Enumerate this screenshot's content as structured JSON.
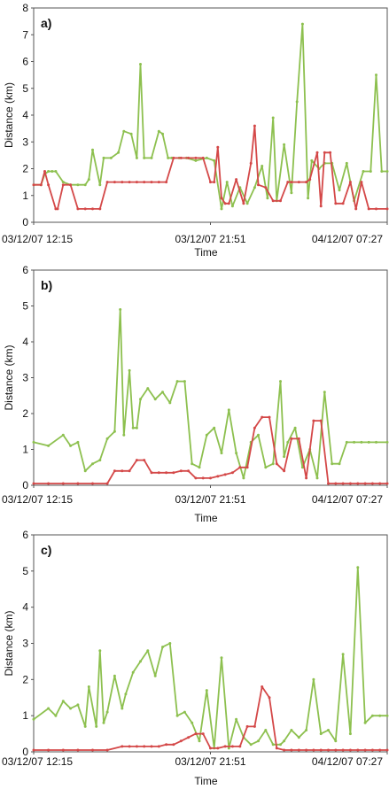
{
  "colors": {
    "green": "#8dc04f",
    "red": "#d44848",
    "axis": "#555555"
  },
  "chart_data": [
    {
      "type": "line",
      "panel_label": "a)",
      "xlabel": "Time",
      "ylabel": "Distance (km)",
      "ylim": [
        0,
        8
      ],
      "yticks": [
        0,
        1,
        2,
        3,
        4,
        5,
        6,
        7,
        8
      ],
      "xlim": [
        0,
        19.2
      ],
      "x_tick_values": [
        0,
        9.6,
        19.2
      ],
      "x_tick_labels": [
        "03/12/07 12:15",
        "03/12/07 21:51",
        "04/12/07 07:27"
      ],
      "grid": false,
      "series": [
        {
          "color": "green",
          "x": [
            0.0,
            0.4,
            0.6,
            0.8,
            1.0,
            1.2,
            1.6,
            2.0,
            2.4,
            2.8,
            3.0,
            3.2,
            3.6,
            3.8,
            4.2,
            4.6,
            4.9,
            5.3,
            5.6,
            5.8,
            6.0,
            6.4,
            6.8,
            7.0,
            7.3,
            7.5,
            7.9,
            8.3,
            8.8,
            9.4,
            9.8,
            10.2,
            10.5,
            10.8,
            11.2,
            11.6,
            12.0,
            12.4,
            12.7,
            13.0,
            13.2,
            13.6,
            14.0,
            14.3,
            14.6,
            14.9,
            15.1,
            15.5,
            15.8,
            16.2,
            16.6,
            17.0,
            17.4,
            17.9,
            18.3,
            18.6,
            18.9,
            19.2
          ],
          "y": [
            1.4,
            1.4,
            1.8,
            1.9,
            1.9,
            1.9,
            1.5,
            1.4,
            1.4,
            1.4,
            1.6,
            2.7,
            1.4,
            2.4,
            2.4,
            2.6,
            3.4,
            3.3,
            2.4,
            5.9,
            2.4,
            2.4,
            3.4,
            3.3,
            2.4,
            2.4,
            2.4,
            2.4,
            2.3,
            2.4,
            2.3,
            0.5,
            1.5,
            0.6,
            1.3,
            0.7,
            1.3,
            2.1,
            0.9,
            3.9,
            0.8,
            2.9,
            1.1,
            4.5,
            7.4,
            0.9,
            2.3,
            2.0,
            2.2,
            2.2,
            1.2,
            2.2,
            0.8,
            1.9,
            1.9,
            5.5,
            1.9,
            1.9
          ]
        },
        {
          "color": "red",
          "x": [
            0.0,
            0.4,
            0.6,
            0.8,
            1.2,
            1.3,
            1.6,
            2.0,
            2.4,
            2.8,
            3.2,
            3.6,
            4.0,
            4.4,
            4.8,
            5.2,
            5.6,
            6.0,
            6.4,
            6.8,
            7.2,
            7.6,
            8.0,
            8.4,
            8.8,
            9.2,
            9.6,
            9.8,
            10.0,
            10.2,
            10.4,
            10.6,
            11.0,
            11.4,
            11.8,
            12.0,
            12.2,
            12.6,
            13.0,
            13.4,
            13.8,
            14.0,
            14.4,
            14.8,
            15.0,
            15.4,
            15.6,
            15.8,
            16.1,
            16.4,
            16.8,
            17.2,
            17.5,
            17.8,
            18.2,
            18.6,
            19.2
          ],
          "y": [
            1.4,
            1.4,
            1.9,
            1.4,
            0.5,
            0.5,
            1.4,
            1.4,
            0.5,
            0.5,
            0.5,
            0.5,
            1.5,
            1.5,
            1.5,
            1.5,
            1.5,
            1.5,
            1.5,
            1.5,
            1.5,
            2.4,
            2.4,
            2.4,
            2.4,
            2.4,
            1.5,
            1.5,
            2.8,
            0.9,
            0.7,
            0.7,
            1.6,
            0.7,
            2.2,
            3.6,
            1.4,
            1.3,
            0.8,
            0.8,
            1.5,
            1.5,
            1.5,
            1.5,
            1.6,
            2.6,
            0.6,
            2.6,
            2.6,
            0.7,
            0.7,
            1.5,
            0.5,
            1.5,
            0.5,
            0.5,
            0.5
          ]
        }
      ]
    },
    {
      "type": "line",
      "panel_label": "b)",
      "xlabel": "Time",
      "ylabel": "Distance (km)",
      "ylim": [
        0,
        6
      ],
      "yticks": [
        0,
        1,
        2,
        3,
        4,
        5,
        6
      ],
      "xlim": [
        0,
        19.2
      ],
      "x_tick_values": [
        0,
        9.6,
        19.2
      ],
      "x_tick_labels": [
        "03/12/07 12:15",
        "03/12/07 21:51",
        "04/12/07 07:27"
      ],
      "grid": false,
      "series": [
        {
          "color": "green",
          "x": [
            0.0,
            0.8,
            1.6,
            2.0,
            2.4,
            2.8,
            3.2,
            3.6,
            4.0,
            4.4,
            4.7,
            4.9,
            5.2,
            5.4,
            5.6,
            5.8,
            6.2,
            6.6,
            7.0,
            7.4,
            7.8,
            8.2,
            8.6,
            9.0,
            9.4,
            9.8,
            10.2,
            10.6,
            11.0,
            11.4,
            11.8,
            12.2,
            12.6,
            13.0,
            13.4,
            13.6,
            13.8,
            14.2,
            14.6,
            15.0,
            15.4,
            15.8,
            16.2,
            16.6,
            17.0,
            17.4,
            17.8,
            18.2,
            18.6,
            19.2
          ],
          "y": [
            1.2,
            1.1,
            1.4,
            1.1,
            1.2,
            0.4,
            0.6,
            0.7,
            1.3,
            1.5,
            4.9,
            1.4,
            3.2,
            1.6,
            1.6,
            2.4,
            2.7,
            2.4,
            2.6,
            2.3,
            2.9,
            2.9,
            0.6,
            0.5,
            1.4,
            1.6,
            0.9,
            2.1,
            0.9,
            0.2,
            1.2,
            1.4,
            0.5,
            0.6,
            2.9,
            0.8,
            1.2,
            1.6,
            0.5,
            1.0,
            0.2,
            2.6,
            0.6,
            0.6,
            1.2,
            1.2,
            1.2,
            1.2,
            1.2,
            1.2
          ]
        },
        {
          "color": "red",
          "x": [
            0.0,
            0.8,
            1.6,
            2.4,
            3.2,
            4.0,
            4.4,
            4.8,
            5.2,
            5.6,
            6.0,
            6.4,
            6.8,
            7.2,
            7.6,
            8.0,
            8.4,
            8.8,
            9.2,
            9.6,
            10.0,
            10.4,
            10.8,
            11.2,
            11.6,
            12.0,
            12.4,
            12.8,
            13.2,
            13.6,
            14.0,
            14.4,
            14.8,
            15.2,
            15.6,
            16.0,
            16.4,
            16.8,
            17.2,
            17.6,
            18.0,
            18.4,
            18.8,
            19.2
          ],
          "y": [
            0.05,
            0.05,
            0.05,
            0.05,
            0.05,
            0.05,
            0.4,
            0.4,
            0.4,
            0.7,
            0.7,
            0.35,
            0.35,
            0.35,
            0.35,
            0.4,
            0.4,
            0.2,
            0.2,
            0.2,
            0.25,
            0.3,
            0.35,
            0.5,
            0.5,
            1.6,
            1.9,
            1.9,
            0.6,
            0.4,
            1.3,
            1.3,
            0.2,
            1.8,
            1.8,
            0.05,
            0.05,
            0.05,
            0.05,
            0.05,
            0.05,
            0.05,
            0.05,
            0.05
          ]
        }
      ]
    },
    {
      "type": "line",
      "panel_label": "c)",
      "xlabel": "Time",
      "ylabel": "Distance (km)",
      "ylim": [
        0,
        6
      ],
      "yticks": [
        0,
        1,
        2,
        3,
        4,
        5,
        6
      ],
      "xlim": [
        0,
        19.2
      ],
      "x_tick_values": [
        0,
        9.6,
        19.2
      ],
      "x_tick_labels": [
        "03/12/07 12:15",
        "03/12/07 21:51",
        "04/12/07 07:27"
      ],
      "grid": false,
      "series": [
        {
          "color": "green",
          "x": [
            0.0,
            0.8,
            1.2,
            1.6,
            2.0,
            2.4,
            2.8,
            3.0,
            3.4,
            3.6,
            3.8,
            4.0,
            4.4,
            4.8,
            5.0,
            5.4,
            5.8,
            6.2,
            6.6,
            7.0,
            7.4,
            7.8,
            8.2,
            8.6,
            9.0,
            9.4,
            9.8,
            10.2,
            10.6,
            11.0,
            11.4,
            11.8,
            12.2,
            12.6,
            13.0,
            13.4,
            13.6,
            14.0,
            14.4,
            14.8,
            15.2,
            15.6,
            16.0,
            16.4,
            16.8,
            17.2,
            17.6,
            18.0,
            18.4,
            18.8,
            19.2
          ],
          "y": [
            0.9,
            1.2,
            1.0,
            1.4,
            1.2,
            1.3,
            0.7,
            1.8,
            0.7,
            2.8,
            0.8,
            1.1,
            2.1,
            1.2,
            1.6,
            2.2,
            2.5,
            2.8,
            2.1,
            2.9,
            3.0,
            1.0,
            1.1,
            0.8,
            0.3,
            1.7,
            0.1,
            2.6,
            0.1,
            0.9,
            0.4,
            0.2,
            0.3,
            0.6,
            0.2,
            0.2,
            0.3,
            0.6,
            0.4,
            0.6,
            2.0,
            0.5,
            0.6,
            0.3,
            2.7,
            0.5,
            5.1,
            0.8,
            1.0,
            1.0,
            1.0
          ]
        },
        {
          "color": "red",
          "x": [
            0.0,
            0.8,
            1.6,
            2.4,
            3.2,
            4.0,
            4.8,
            5.2,
            5.6,
            6.0,
            6.4,
            6.8,
            7.2,
            7.6,
            8.0,
            8.4,
            8.8,
            9.2,
            9.6,
            10.0,
            10.4,
            10.8,
            11.2,
            11.6,
            12.0,
            12.4,
            12.8,
            13.2,
            13.6,
            14.0,
            14.4,
            14.8,
            15.2,
            15.6,
            16.0,
            16.4,
            16.8,
            17.2,
            17.6,
            18.0,
            18.4,
            18.8,
            19.2
          ],
          "y": [
            0.05,
            0.05,
            0.05,
            0.05,
            0.05,
            0.05,
            0.15,
            0.15,
            0.15,
            0.15,
            0.15,
            0.15,
            0.2,
            0.2,
            0.3,
            0.4,
            0.5,
            0.5,
            0.1,
            0.1,
            0.15,
            0.15,
            0.15,
            0.7,
            0.7,
            1.8,
            1.5,
            0.1,
            0.05,
            0.05,
            0.05,
            0.05,
            0.05,
            0.05,
            0.05,
            0.05,
            0.05,
            0.05,
            0.05,
            0.05,
            0.05,
            0.05,
            0.05
          ]
        }
      ]
    }
  ]
}
